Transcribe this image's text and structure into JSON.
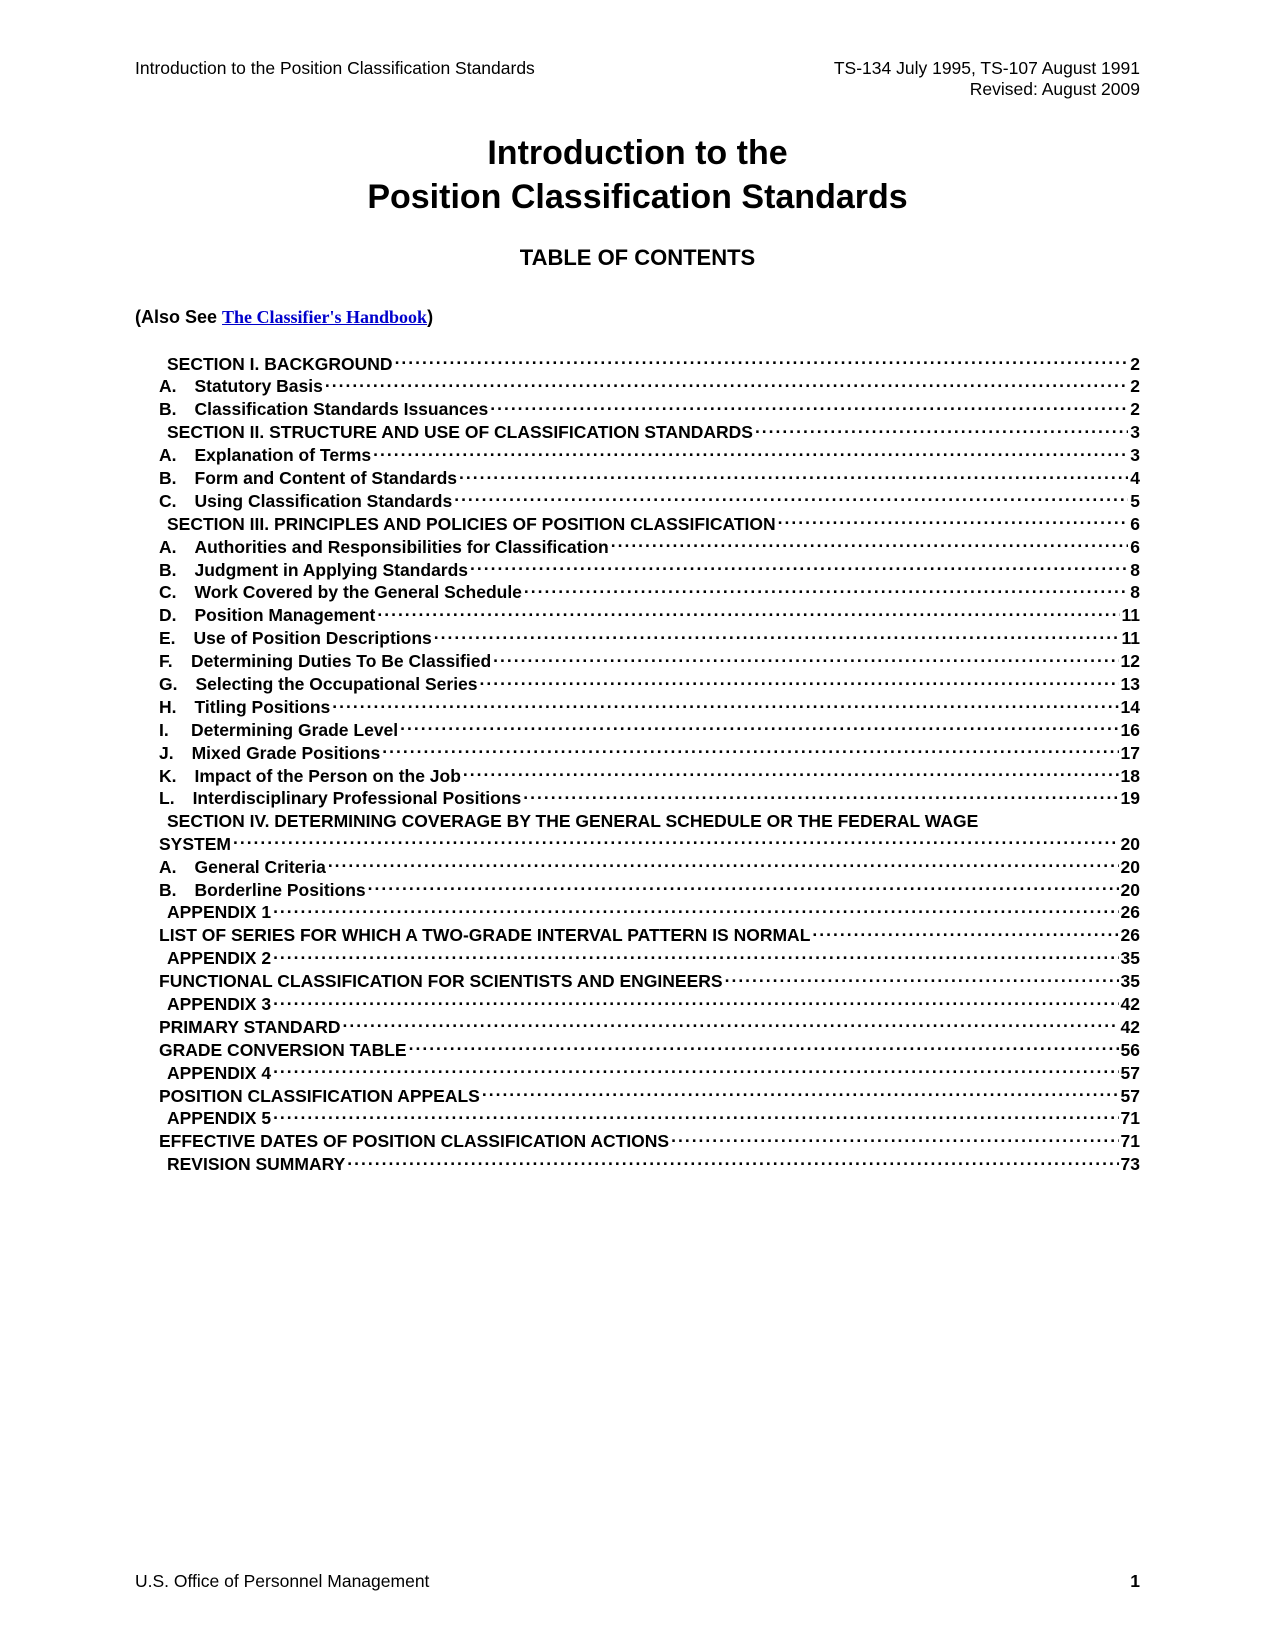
{
  "header": {
    "left": "Introduction to the Position Classification Standards",
    "right_line1": "TS-134 July 1995, TS-107 August 1991",
    "right_line2": "Revised:  August 2009"
  },
  "title_line1": "Introduction to the",
  "title_line2": "Position Classification Standards",
  "subtitle": "TABLE OF CONTENTS",
  "also_see_prefix": "(Also See ",
  "also_see_link": "The Classifier's Handbook",
  "also_see_suffix": ")",
  "toc": [
    {
      "indent": 0,
      "prefix": "",
      "label": "SECTION I.  BACKGROUND",
      "page": "2"
    },
    {
      "indent": 1,
      "prefix": "A.",
      "label": "Statutory Basis",
      "page": "2"
    },
    {
      "indent": 1,
      "prefix": "B.",
      "label": "Classification Standards Issuances",
      "page": "2"
    },
    {
      "indent": 0,
      "prefix": "",
      "label": "SECTION II.  STRUCTURE AND USE OF CLASSIFICATION STANDARDS",
      "page": "3"
    },
    {
      "indent": 1,
      "prefix": "A.",
      "label": "Explanation of Terms",
      "page": "3"
    },
    {
      "indent": 1,
      "prefix": "B.",
      "label": "Form and Content of Standards",
      "page": "4"
    },
    {
      "indent": 1,
      "prefix": "C.",
      "label": "Using Classification Standards",
      "page": "5"
    },
    {
      "indent": 0,
      "prefix": "",
      "label": "SECTION III.  PRINCIPLES AND POLICIES OF POSITION CLASSIFICATION",
      "page": "6"
    },
    {
      "indent": 1,
      "prefix": "A.",
      "label": "Authorities and Responsibilities for Classification",
      "page": "6"
    },
    {
      "indent": 1,
      "prefix": "B.",
      "label": "Judgment in Applying Standards",
      "page": "8"
    },
    {
      "indent": 1,
      "prefix": "C.",
      "label": "Work Covered by the General Schedule",
      "page": "8"
    },
    {
      "indent": 1,
      "prefix": "D.",
      "label": "Position Management",
      "page": "11"
    },
    {
      "indent": 1,
      "prefix": "E.",
      "label": "Use of Position Descriptions",
      "page": "11"
    },
    {
      "indent": 1,
      "prefix": "F.",
      "label": "Determining Duties To Be Classified",
      "page": "12"
    },
    {
      "indent": 1,
      "prefix": "G.",
      "label": "Selecting the Occupational Series",
      "page": "13"
    },
    {
      "indent": 1,
      "prefix": "H.",
      "label": "Titling Positions",
      "page": "14"
    },
    {
      "indent": 1,
      "prefix": "I.",
      "label": "Determining Grade Level",
      "page": "16"
    },
    {
      "indent": 1,
      "prefix": "J.",
      "label": "Mixed Grade Positions",
      "page": "17"
    },
    {
      "indent": 1,
      "prefix": "K.",
      "label": "Impact of the Person on the Job",
      "page": "18"
    },
    {
      "indent": 1,
      "prefix": "L.",
      "label": "Interdisciplinary Professional Positions",
      "page": "19"
    },
    {
      "indent": 0,
      "prefix": "",
      "label": "SECTION IV.  DETERMINING COVERAGE BY THE GENERAL SCHEDULE OR THE FEDERAL WAGE",
      "wrap": true
    },
    {
      "indent": 1,
      "prefix": "",
      "label": "SYSTEM",
      "page": "20",
      "noPrefix": true
    },
    {
      "indent": 1,
      "prefix": "A.",
      "label": "General Criteria",
      "page": "20"
    },
    {
      "indent": 1,
      "prefix": "B.",
      "label": "Borderline Positions",
      "page": "20"
    },
    {
      "indent": 0,
      "prefix": "",
      "label": "APPENDIX 1",
      "page": "26"
    },
    {
      "indent": 1,
      "prefix": "",
      "label": "LIST OF SERIES FOR WHICH A TWO-GRADE INTERVAL PATTERN IS NORMAL",
      "page": "26",
      "noPrefix": true
    },
    {
      "indent": 0,
      "prefix": "",
      "label": "APPENDIX 2",
      "page": "35"
    },
    {
      "indent": 1,
      "prefix": "",
      "label": "FUNCTIONAL CLASSIFICATION FOR SCIENTISTS AND ENGINEERS",
      "page": "35",
      "noPrefix": true
    },
    {
      "indent": 0,
      "prefix": "",
      "label": "APPENDIX 3",
      "page": "42"
    },
    {
      "indent": 1,
      "prefix": "",
      "label": "PRIMARY STANDARD",
      "page": "42",
      "noPrefix": true
    },
    {
      "indent": 1,
      "prefix": "",
      "label": "GRADE CONVERSION TABLE",
      "page": "56",
      "noPrefix": true
    },
    {
      "indent": 0,
      "prefix": "",
      "label": "APPENDIX 4",
      "page": "57"
    },
    {
      "indent": 1,
      "prefix": "",
      "label": "POSITION CLASSIFICATION APPEALS",
      "page": "57",
      "noPrefix": true
    },
    {
      "indent": 0,
      "prefix": "",
      "label": "APPENDIX 5",
      "page": "71"
    },
    {
      "indent": 1,
      "prefix": "",
      "label": "EFFECTIVE DATES OF POSITION CLASSIFICATION ACTIONS",
      "page": "71",
      "noPrefix": true
    },
    {
      "indent": 0,
      "prefix": "",
      "label": "REVISION SUMMARY",
      "page": "73"
    }
  ],
  "footer": {
    "left": "U.S. Office of Personnel Management",
    "page": "1"
  },
  "colors": {
    "text": "#000000",
    "link": "#0000cc",
    "background": "#ffffff"
  },
  "fonts": {
    "body_pt": 13,
    "title_pt": 26,
    "subtitle_pt": 17
  }
}
